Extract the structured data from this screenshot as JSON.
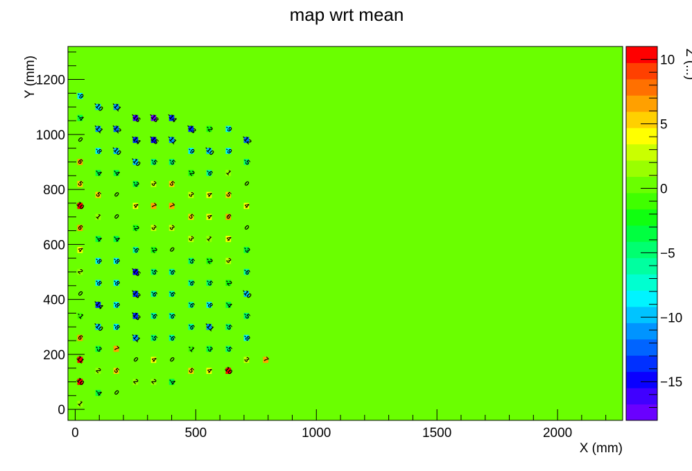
{
  "chart_data": {
    "type": "heatmap",
    "title": "map wrt mean",
    "xlabel": "X (mm)",
    "ylabel": "Y (mm)",
    "zlabel": "Z (...)",
    "xlim": [
      -30,
      2270
    ],
    "ylim": [
      -40,
      1320
    ],
    "zlim": [
      -18,
      11
    ],
    "x_ticks": [
      0,
      500,
      1000,
      1500,
      2000
    ],
    "y_ticks": [
      0,
      200,
      400,
      600,
      800,
      1000,
      1200
    ],
    "z_ticks": [
      -15,
      -10,
      -5,
      0,
      5,
      10
    ],
    "x_tick_labels": [
      "0",
      "500",
      "1000",
      "1500",
      "2000"
    ],
    "y_tick_labels": [
      "0",
      "200",
      "400",
      "600",
      "800",
      "1000",
      "1200"
    ],
    "z_tick_labels": [
      "−15",
      "−10",
      "−5",
      "0",
      "5",
      "10"
    ],
    "background_value": 0,
    "palette": [
      "#6a00ff",
      "#4000ff",
      "#0a00ff",
      "#0030ff",
      "#0064ff",
      "#0094ff",
      "#00c4ff",
      "#00f4ff",
      "#00ffd0",
      "#00ffa0",
      "#00ff70",
      "#00ff40",
      "#10ff10",
      "#40ff00",
      "#6aff00",
      "#9aff00",
      "#caff00",
      "#ffff00",
      "#ffd000",
      "#ffa000",
      "#ff7000",
      "#ff4000",
      "#ff0000"
    ],
    "cell_size": [
      22,
      22
    ],
    "points": [
      {
        "x": 20,
        "y": 20,
        "v": 1
      },
      {
        "x": 20,
        "y": 100,
        "v": 10
      },
      {
        "x": 20,
        "y": 180,
        "v": 11
      },
      {
        "x": 20,
        "y": 260,
        "v": 6
      },
      {
        "x": 20,
        "y": 340,
        "v": -1
      },
      {
        "x": 20,
        "y": 420,
        "v": 0
      },
      {
        "x": 20,
        "y": 500,
        "v": 2
      },
      {
        "x": 20,
        "y": 580,
        "v": 4
      },
      {
        "x": 20,
        "y": 660,
        "v": 6
      },
      {
        "x": 20,
        "y": 740,
        "v": 10
      },
      {
        "x": 20,
        "y": 820,
        "v": 5
      },
      {
        "x": 20,
        "y": 900,
        "v": 6
      },
      {
        "x": 20,
        "y": 980,
        "v": 0
      },
      {
        "x": 20,
        "y": 1060,
        "v": -4
      },
      {
        "x": 20,
        "y": 1140,
        "v": -9
      },
      {
        "x": 95,
        "y": 60,
        "v": -4
      },
      {
        "x": 95,
        "y": 140,
        "v": 2
      },
      {
        "x": 95,
        "y": 220,
        "v": -3
      },
      {
        "x": 95,
        "y": 300,
        "v": -10
      },
      {
        "x": 95,
        "y": 380,
        "v": -14
      },
      {
        "x": 95,
        "y": 460,
        "v": -8
      },
      {
        "x": 95,
        "y": 540,
        "v": -8
      },
      {
        "x": 95,
        "y": 620,
        "v": -4
      },
      {
        "x": 95,
        "y": 700,
        "v": 1
      },
      {
        "x": 95,
        "y": 780,
        "v": 5
      },
      {
        "x": 95,
        "y": 860,
        "v": -4
      },
      {
        "x": 95,
        "y": 940,
        "v": -8
      },
      {
        "x": 95,
        "y": 1020,
        "v": -11
      },
      {
        "x": 95,
        "y": 1100,
        "v": -10
      },
      {
        "x": 170,
        "y": 60,
        "v": 0
      },
      {
        "x": 170,
        "y": 140,
        "v": 5
      },
      {
        "x": 170,
        "y": 220,
        "v": 7
      },
      {
        "x": 170,
        "y": 300,
        "v": -8
      },
      {
        "x": 170,
        "y": 380,
        "v": -8
      },
      {
        "x": 170,
        "y": 460,
        "v": -8
      },
      {
        "x": 170,
        "y": 540,
        "v": -8
      },
      {
        "x": 170,
        "y": 620,
        "v": -4
      },
      {
        "x": 170,
        "y": 700,
        "v": 0
      },
      {
        "x": 170,
        "y": 780,
        "v": 0
      },
      {
        "x": 170,
        "y": 860,
        "v": -4
      },
      {
        "x": 170,
        "y": 940,
        "v": -10
      },
      {
        "x": 170,
        "y": 1020,
        "v": -12
      },
      {
        "x": 170,
        "y": 1100,
        "v": -11
      },
      {
        "x": 250,
        "y": 100,
        "v": 2
      },
      {
        "x": 250,
        "y": 180,
        "v": 0
      },
      {
        "x": 250,
        "y": 260,
        "v": -11
      },
      {
        "x": 250,
        "y": 340,
        "v": -13
      },
      {
        "x": 250,
        "y": 420,
        "v": -13
      },
      {
        "x": 250,
        "y": 500,
        "v": -15
      },
      {
        "x": 250,
        "y": 580,
        "v": -6
      },
      {
        "x": 250,
        "y": 660,
        "v": -2
      },
      {
        "x": 250,
        "y": 740,
        "v": 4
      },
      {
        "x": 250,
        "y": 820,
        "v": -3
      },
      {
        "x": 250,
        "y": 900,
        "v": -10
      },
      {
        "x": 250,
        "y": 980,
        "v": -14
      },
      {
        "x": 250,
        "y": 1060,
        "v": -16
      },
      {
        "x": 325,
        "y": 100,
        "v": 2
      },
      {
        "x": 325,
        "y": 180,
        "v": 4
      },
      {
        "x": 325,
        "y": 260,
        "v": -5
      },
      {
        "x": 325,
        "y": 340,
        "v": -6
      },
      {
        "x": 325,
        "y": 420,
        "v": -6
      },
      {
        "x": 325,
        "y": 500,
        "v": -5
      },
      {
        "x": 325,
        "y": 580,
        "v": -2
      },
      {
        "x": 325,
        "y": 660,
        "v": 3
      },
      {
        "x": 325,
        "y": 740,
        "v": 7
      },
      {
        "x": 325,
        "y": 820,
        "v": 3
      },
      {
        "x": 325,
        "y": 900,
        "v": -5
      },
      {
        "x": 325,
        "y": 980,
        "v": -15
      },
      {
        "x": 325,
        "y": 1060,
        "v": -18
      },
      {
        "x": 400,
        "y": 100,
        "v": -4
      },
      {
        "x": 400,
        "y": 180,
        "v": 0
      },
      {
        "x": 400,
        "y": 260,
        "v": -6
      },
      {
        "x": 400,
        "y": 340,
        "v": -6
      },
      {
        "x": 400,
        "y": 420,
        "v": -6
      },
      {
        "x": 400,
        "y": 500,
        "v": -6
      },
      {
        "x": 400,
        "y": 580,
        "v": 0
      },
      {
        "x": 400,
        "y": 660,
        "v": 3
      },
      {
        "x": 400,
        "y": 740,
        "v": 7
      },
      {
        "x": 400,
        "y": 820,
        "v": 5
      },
      {
        "x": 400,
        "y": 900,
        "v": -5
      },
      {
        "x": 400,
        "y": 980,
        "v": -11
      },
      {
        "x": 400,
        "y": 1060,
        "v": -14
      },
      {
        "x": 480,
        "y": 140,
        "v": 5
      },
      {
        "x": 480,
        "y": 220,
        "v": -1
      },
      {
        "x": 480,
        "y": 300,
        "v": -6
      },
      {
        "x": 480,
        "y": 380,
        "v": -6
      },
      {
        "x": 480,
        "y": 460,
        "v": -6
      },
      {
        "x": 480,
        "y": 540,
        "v": -5
      },
      {
        "x": 480,
        "y": 620,
        "v": 3
      },
      {
        "x": 480,
        "y": 700,
        "v": 5
      },
      {
        "x": 480,
        "y": 780,
        "v": 3
      },
      {
        "x": 480,
        "y": 860,
        "v": -2
      },
      {
        "x": 480,
        "y": 940,
        "v": -9
      },
      {
        "x": 480,
        "y": 1020,
        "v": -13
      },
      {
        "x": 555,
        "y": 140,
        "v": 4
      },
      {
        "x": 555,
        "y": 220,
        "v": -3
      },
      {
        "x": 555,
        "y": 300,
        "v": -11
      },
      {
        "x": 555,
        "y": 380,
        "v": -8
      },
      {
        "x": 555,
        "y": 460,
        "v": -5
      },
      {
        "x": 555,
        "y": 540,
        "v": -2
      },
      {
        "x": 555,
        "y": 620,
        "v": 1
      },
      {
        "x": 555,
        "y": 700,
        "v": 4
      },
      {
        "x": 555,
        "y": 780,
        "v": 4
      },
      {
        "x": 555,
        "y": 860,
        "v": -6
      },
      {
        "x": 555,
        "y": 940,
        "v": -10
      },
      {
        "x": 555,
        "y": 1020,
        "v": -2
      },
      {
        "x": 635,
        "y": 140,
        "v": 10
      },
      {
        "x": 635,
        "y": 220,
        "v": -5
      },
      {
        "x": 635,
        "y": 300,
        "v": -5
      },
      {
        "x": 635,
        "y": 380,
        "v": -4
      },
      {
        "x": 635,
        "y": 460,
        "v": -2
      },
      {
        "x": 635,
        "y": 540,
        "v": 3
      },
      {
        "x": 635,
        "y": 620,
        "v": 4
      },
      {
        "x": 635,
        "y": 700,
        "v": 6
      },
      {
        "x": 635,
        "y": 780,
        "v": 5
      },
      {
        "x": 635,
        "y": 860,
        "v": 1
      },
      {
        "x": 635,
        "y": 940,
        "v": -9
      },
      {
        "x": 635,
        "y": 1020,
        "v": -9
      },
      {
        "x": 710,
        "y": 180,
        "v": 3
      },
      {
        "x": 710,
        "y": 260,
        "v": -8
      },
      {
        "x": 710,
        "y": 340,
        "v": -5
      },
      {
        "x": 710,
        "y": 420,
        "v": -10
      },
      {
        "x": 710,
        "y": 500,
        "v": -6
      },
      {
        "x": 710,
        "y": 580,
        "v": -3
      },
      {
        "x": 710,
        "y": 660,
        "v": 0
      },
      {
        "x": 710,
        "y": 740,
        "v": 4
      },
      {
        "x": 710,
        "y": 820,
        "v": 0
      },
      {
        "x": 710,
        "y": 900,
        "v": -5
      },
      {
        "x": 710,
        "y": 980,
        "v": -12
      },
      {
        "x": 790,
        "y": 180,
        "v": 7
      }
    ]
  }
}
